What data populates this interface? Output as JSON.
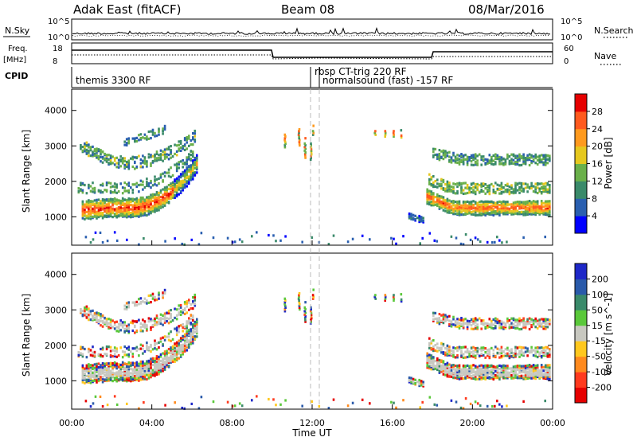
{
  "header": {
    "station": "Adak East (fitACF)",
    "beam": "Beam 08",
    "date": "08/Mar/2016"
  },
  "noise_panel": {
    "left_label": "N.Sky",
    "right_label": "N.Search",
    "left_ticks": [
      "10^5",
      "10^0"
    ],
    "right_ticks": [
      "10^5",
      "10^0"
    ]
  },
  "freq_panel": {
    "left_label": "Freq.",
    "left_unit": "[MHz]",
    "right_label": "Nave",
    "left_ticks": [
      "18",
      "8"
    ],
    "right_ticks": [
      "60",
      "0"
    ]
  },
  "cpid": {
    "label": "CPID",
    "modes": [
      {
        "name": "themis 3300 RF",
        "start_hour": 0.0
      },
      {
        "name": "rbsp CT-trig 220 RF",
        "start_hour": 12.0
      },
      {
        "name": "normalsound (fast) -157 RF",
        "start_hour": 12.5
      }
    ]
  },
  "chart_data": [
    {
      "type": "heatmap",
      "name": "power",
      "ylabel": "Slant Range [km]",
      "yticks": [
        1000,
        2000,
        3000,
        4000
      ],
      "ylim": [
        200,
        4600
      ],
      "colorbar_label": "Power [dB]",
      "colorbar_ticks": [
        "4",
        "8",
        "12",
        "16",
        "20",
        "24",
        "28"
      ],
      "colors": [
        "#0000ff",
        "#2a5fb0",
        "#3a8a6a",
        "#6ab04a",
        "#e6c81e",
        "#ff9a1e",
        "#ff5a1e",
        "#e60000"
      ]
    },
    {
      "type": "heatmap",
      "name": "velocity",
      "ylabel": "Slant Range [km]",
      "yticks": [
        1000,
        2000,
        3000,
        4000
      ],
      "ylim": [
        200,
        4600
      ],
      "xlabel": "Time UT",
      "xticks": [
        "00:00",
        "04:00",
        "08:00",
        "12:00",
        "16:00",
        "20:00",
        "00:00"
      ],
      "xlim": [
        0,
        24
      ],
      "colorbar_label": "Velocity [m s^-1]",
      "colorbar_ticks": [
        "200",
        "100",
        "50",
        "15",
        "-15",
        "-50",
        "-100",
        "-200"
      ],
      "colors": [
        "#1e28c8",
        "#2a5aaa",
        "#3a8a6a",
        "#5ac83a",
        "#c8c8c0",
        "#ffc81e",
        "#ff8a1e",
        "#ff3a1e",
        "#e60000"
      ]
    }
  ]
}
